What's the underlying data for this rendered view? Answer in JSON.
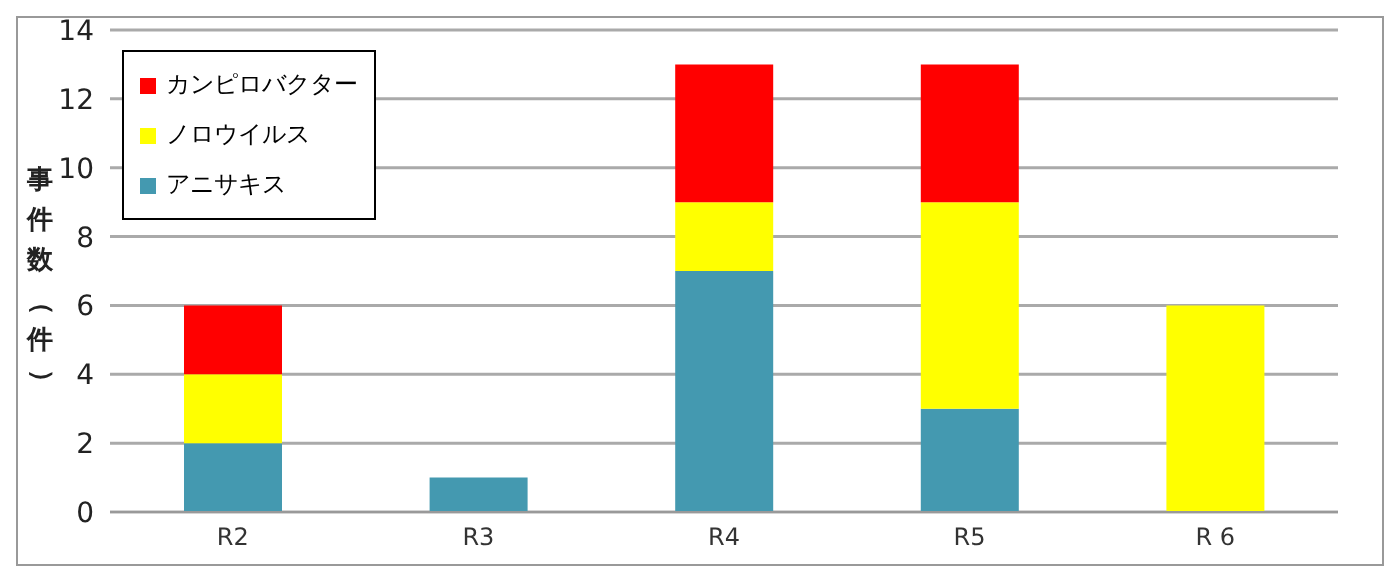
{
  "chart_data": {
    "type": "bar",
    "ylabel": "事件数（件）",
    "categories": [
      "R2",
      "R3",
      "R4",
      "R5",
      "R 6"
    ],
    "stacked": true,
    "ylim": [
      0,
      14
    ],
    "yticks": [
      0,
      2,
      4,
      6,
      8,
      10,
      12,
      14
    ],
    "grid": "y",
    "legend": "top left",
    "series": [
      {
        "name": "アニサキス",
        "color": "#4499b0",
        "values": [
          2,
          1,
          7,
          3,
          0
        ]
      },
      {
        "name": "ノロウイルス",
        "color": "#ffff00",
        "values": [
          2,
          0,
          2,
          6,
          6
        ]
      },
      {
        "name": "カンピロバクター",
        "color": "#ff0000",
        "values": [
          2,
          0,
          4,
          4,
          0
        ]
      }
    ]
  }
}
